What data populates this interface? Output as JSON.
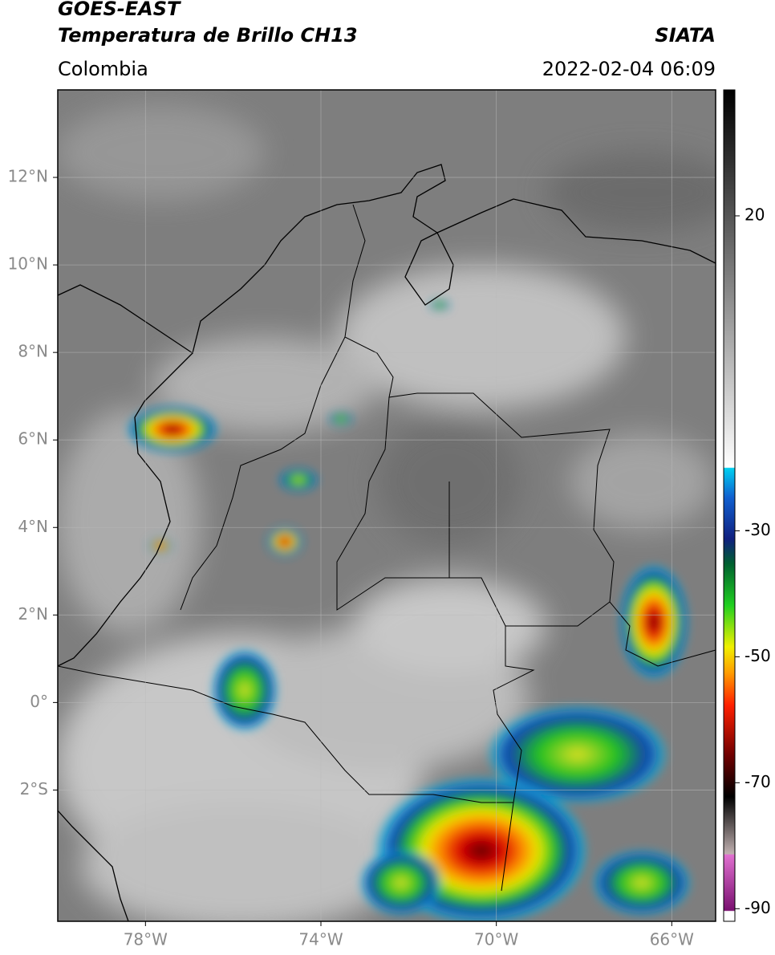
{
  "header": {
    "title": "GOES-EAST",
    "subtitle": "Temperatura de Brillo CH13",
    "source": "SIATA",
    "region": "Colombia",
    "datetime": "2022-02-04 06:09"
  },
  "map": {
    "xlim": [
      -80,
      -65
    ],
    "ylim": [
      -5,
      14
    ],
    "xticks": [
      {
        "value": -78,
        "label": "78°W"
      },
      {
        "value": -74,
        "label": "74°W"
      },
      {
        "value": -70,
        "label": "70°W"
      },
      {
        "value": -66,
        "label": "66°W"
      }
    ],
    "yticks": [
      {
        "value": 12,
        "label": "12°N"
      },
      {
        "value": 10,
        "label": "10°N"
      },
      {
        "value": 8,
        "label": "8°N"
      },
      {
        "value": 6,
        "label": "6°N"
      },
      {
        "value": 4,
        "label": "4°N"
      },
      {
        "value": 2,
        "label": "2°N"
      },
      {
        "value": 0,
        "label": "0°"
      },
      {
        "value": -2,
        "label": "2°S"
      }
    ],
    "grid": true
  },
  "colorbar": {
    "lim": [
      -92,
      40
    ],
    "ticks": [
      20,
      -30,
      -50,
      -70,
      -90
    ]
  }
}
